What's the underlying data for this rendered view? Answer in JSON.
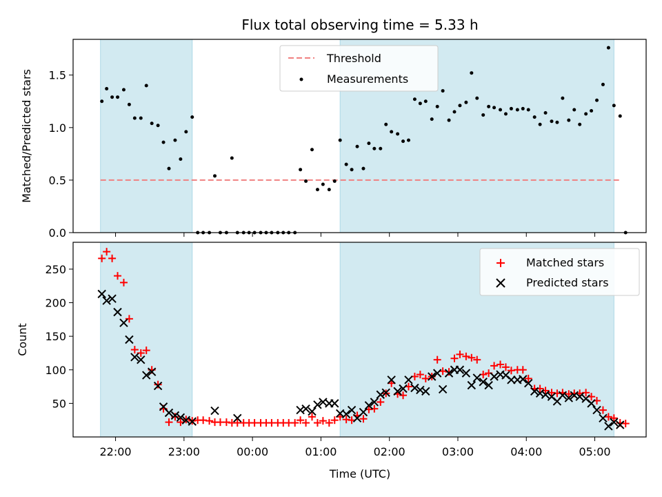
{
  "chart_data": {
    "type": "scatter",
    "title": "Flux total observing time = 5.33 h",
    "xlabel": "Time (UTC)",
    "x_unit": "hours since 00:00 UTC (negative = previous day)",
    "xlim": [
      -2.62,
      5.75
    ],
    "xticks": [
      {
        "x": -2,
        "label": "22:00"
      },
      {
        "x": -1,
        "label": "23:00"
      },
      {
        "x": 0,
        "label": "00:00"
      },
      {
        "x": 1,
        "label": "01:00"
      },
      {
        "x": 2,
        "label": "02:00"
      },
      {
        "x": 3,
        "label": "03:00"
      },
      {
        "x": 4,
        "label": "04:00"
      },
      {
        "x": 5,
        "label": "05:00"
      }
    ],
    "shaded_regions": [
      [
        -2.22,
        -0.88
      ],
      [
        1.28,
        5.28
      ]
    ],
    "shade_color": "#add8e6",
    "top": {
      "ylabel": "Matched/Predicted stars",
      "ylim": [
        0,
        1.84
      ],
      "yticks": [
        {
          "v": 0,
          "label": "0.0"
        },
        {
          "v": 0.5,
          "label": "0.5"
        },
        {
          "v": 1.0,
          "label": "1.0"
        },
        {
          "v": 1.5,
          "label": "1.5"
        }
      ],
      "legend_position": "top-center",
      "threshold": {
        "name": "Threshold",
        "value": 0.5,
        "x_range": [
          -2.22,
          5.37
        ],
        "color": "#f08080"
      },
      "measurements": {
        "name": "Measurements",
        "color": "#000000",
        "points": [
          [
            -2.2,
            1.25
          ],
          [
            -2.13,
            1.37
          ],
          [
            -2.05,
            1.29
          ],
          [
            -1.97,
            1.29
          ],
          [
            -1.88,
            1.36
          ],
          [
            -1.8,
            1.22
          ],
          [
            -1.72,
            1.09
          ],
          [
            -1.63,
            1.09
          ],
          [
            -1.55,
            1.4
          ],
          [
            -1.47,
            1.04
          ],
          [
            -1.38,
            1.02
          ],
          [
            -1.3,
            0.86
          ],
          [
            -1.22,
            0.61
          ],
          [
            -1.13,
            0.88
          ],
          [
            -1.05,
            0.7
          ],
          [
            -0.97,
            0.96
          ],
          [
            -0.88,
            1.1
          ],
          [
            -0.8,
            0
          ],
          [
            -0.72,
            0
          ],
          [
            -0.63,
            0
          ],
          [
            -0.55,
            0.54
          ],
          [
            -0.47,
            0
          ],
          [
            -0.38,
            0
          ],
          [
            -0.3,
            0.71
          ],
          [
            -0.22,
            0
          ],
          [
            -0.13,
            0
          ],
          [
            -0.05,
            0
          ],
          [
            0.03,
            0
          ],
          [
            0.12,
            0
          ],
          [
            0.2,
            0
          ],
          [
            0.28,
            0
          ],
          [
            0.37,
            0
          ],
          [
            0.45,
            0
          ],
          [
            0.53,
            0
          ],
          [
            0.62,
            0
          ],
          [
            0.7,
            0.6
          ],
          [
            0.78,
            0.49
          ],
          [
            0.87,
            0.79
          ],
          [
            0.95,
            0.41
          ],
          [
            1.03,
            0.46
          ],
          [
            1.12,
            0.41
          ],
          [
            1.2,
            0.49
          ],
          [
            1.28,
            0.88
          ],
          [
            1.37,
            0.65
          ],
          [
            1.45,
            0.6
          ],
          [
            1.53,
            0.82
          ],
          [
            1.62,
            0.61
          ],
          [
            1.7,
            0.85
          ],
          [
            1.78,
            0.8
          ],
          [
            1.87,
            0.8
          ],
          [
            1.95,
            1.03
          ],
          [
            2.03,
            0.96
          ],
          [
            2.12,
            0.94
          ],
          [
            2.2,
            0.87
          ],
          [
            2.28,
            0.88
          ],
          [
            2.37,
            1.27
          ],
          [
            2.45,
            1.23
          ],
          [
            2.53,
            1.25
          ],
          [
            2.62,
            1.08
          ],
          [
            2.7,
            1.2
          ],
          [
            2.78,
            1.35
          ],
          [
            2.87,
            1.07
          ],
          [
            2.95,
            1.15
          ],
          [
            3.03,
            1.21
          ],
          [
            3.12,
            1.24
          ],
          [
            3.2,
            1.52
          ],
          [
            3.28,
            1.28
          ],
          [
            3.37,
            1.12
          ],
          [
            3.45,
            1.2
          ],
          [
            3.53,
            1.19
          ],
          [
            3.62,
            1.17
          ],
          [
            3.7,
            1.13
          ],
          [
            3.78,
            1.18
          ],
          [
            3.87,
            1.17
          ],
          [
            3.95,
            1.18
          ],
          [
            4.03,
            1.17
          ],
          [
            4.12,
            1.1
          ],
          [
            4.2,
            1.03
          ],
          [
            4.28,
            1.14
          ],
          [
            4.37,
            1.06
          ],
          [
            4.45,
            1.05
          ],
          [
            4.53,
            1.28
          ],
          [
            4.62,
            1.07
          ],
          [
            4.7,
            1.17
          ],
          [
            4.78,
            1.03
          ],
          [
            4.87,
            1.13
          ],
          [
            4.95,
            1.16
          ],
          [
            5.03,
            1.26
          ],
          [
            5.12,
            1.41
          ],
          [
            5.2,
            1.76
          ],
          [
            5.28,
            1.21
          ],
          [
            5.37,
            1.11
          ],
          [
            5.45,
            0
          ]
        ]
      }
    },
    "bottom": {
      "ylabel": "Count",
      "ylim": [
        0,
        290
      ],
      "yticks": [
        {
          "v": 50,
          "label": "50"
        },
        {
          "v": 100,
          "label": "100"
        },
        {
          "v": 150,
          "label": "150"
        },
        {
          "v": 200,
          "label": "200"
        },
        {
          "v": 250,
          "label": "250"
        }
      ],
      "legend_position": "top-right",
      "series": [
        {
          "name": "Matched stars",
          "marker": "plus",
          "color": "#ff0000",
          "points": [
            [
              -2.2,
              266
            ],
            [
              -2.13,
              276
            ],
            [
              -2.05,
              266
            ],
            [
              -1.97,
              240
            ],
            [
              -1.88,
              230
            ],
            [
              -1.8,
              176
            ],
            [
              -1.72,
              130
            ],
            [
              -1.63,
              125
            ],
            [
              -1.55,
              129
            ],
            [
              -1.47,
              100
            ],
            [
              -1.38,
              78
            ],
            [
              -1.3,
              42
            ],
            [
              -1.22,
              22
            ],
            [
              -1.13,
              30
            ],
            [
              -1.05,
              22
            ],
            [
              -0.97,
              26
            ],
            [
              -0.88,
              24
            ],
            [
              -0.8,
              25
            ],
            [
              -0.72,
              25
            ],
            [
              -0.63,
              24
            ],
            [
              -0.55,
              22
            ],
            [
              -0.47,
              22
            ],
            [
              -0.38,
              22
            ],
            [
              -0.3,
              21
            ],
            [
              -0.22,
              21
            ],
            [
              -0.13,
              21
            ],
            [
              -0.05,
              21
            ],
            [
              0.03,
              21
            ],
            [
              0.12,
              21
            ],
            [
              0.2,
              21
            ],
            [
              0.28,
              21
            ],
            [
              0.37,
              21
            ],
            [
              0.45,
              21
            ],
            [
              0.53,
              21
            ],
            [
              0.62,
              21
            ],
            [
              0.7,
              25
            ],
            [
              0.78,
              21
            ],
            [
              0.87,
              30
            ],
            [
              0.95,
              21
            ],
            [
              1.03,
              24
            ],
            [
              1.12,
              21
            ],
            [
              1.2,
              25
            ],
            [
              1.28,
              30
            ],
            [
              1.37,
              26
            ],
            [
              1.45,
              25
            ],
            [
              1.53,
              32
            ],
            [
              1.62,
              27
            ],
            [
              1.7,
              41
            ],
            [
              1.78,
              42
            ],
            [
              1.87,
              52
            ],
            [
              1.95,
              65
            ],
            [
              2.03,
              80
            ],
            [
              2.12,
              64
            ],
            [
              2.2,
              62
            ],
            [
              2.28,
              75
            ],
            [
              2.37,
              90
            ],
            [
              2.45,
              93
            ],
            [
              2.53,
              87
            ],
            [
              2.62,
              90
            ],
            [
              2.7,
              115
            ],
            [
              2.78,
              98
            ],
            [
              2.87,
              97
            ],
            [
              2.95,
              117
            ],
            [
              3.03,
              123
            ],
            [
              3.12,
              120
            ],
            [
              3.2,
              118
            ],
            [
              3.28,
              115
            ],
            [
              3.37,
              93
            ],
            [
              3.45,
              95
            ],
            [
              3.53,
              106
            ],
            [
              3.62,
              108
            ],
            [
              3.7,
              104
            ],
            [
              3.78,
              99
            ],
            [
              3.87,
              100
            ],
            [
              3.95,
              100
            ],
            [
              4.03,
              87
            ],
            [
              4.12,
              72
            ],
            [
              4.2,
              72
            ],
            [
              4.28,
              69
            ],
            [
              4.37,
              66
            ],
            [
              4.45,
              65
            ],
            [
              4.53,
              66
            ],
            [
              4.62,
              64
            ],
            [
              4.7,
              65
            ],
            [
              4.78,
              65
            ],
            [
              4.87,
              66
            ],
            [
              4.95,
              60
            ],
            [
              5.03,
              54
            ],
            [
              5.12,
              40
            ],
            [
              5.2,
              30
            ],
            [
              5.28,
              28
            ],
            [
              5.37,
              21
            ],
            [
              5.45,
              20
            ]
          ]
        },
        {
          "name": "Predicted stars",
          "marker": "x",
          "color": "#000000",
          "points": [
            [
              -2.2,
              213
            ],
            [
              -2.13,
              203
            ],
            [
              -2.05,
              206
            ],
            [
              -1.97,
              186
            ],
            [
              -1.88,
              170
            ],
            [
              -1.8,
              145
            ],
            [
              -1.72,
              119
            ],
            [
              -1.63,
              115
            ],
            [
              -1.55,
              92
            ],
            [
              -1.47,
              97
            ],
            [
              -1.38,
              76
            ],
            [
              -1.3,
              45
            ],
            [
              -1.22,
              36
            ],
            [
              -1.13,
              32
            ],
            [
              -1.05,
              29
            ],
            [
              -0.97,
              25
            ],
            [
              -0.88,
              23
            ],
            [
              -0.55,
              39
            ],
            [
              -0.22,
              28
            ],
            [
              0.7,
              40
            ],
            [
              0.78,
              42
            ],
            [
              0.87,
              38
            ],
            [
              0.95,
              48
            ],
            [
              1.03,
              52
            ],
            [
              1.12,
              50
            ],
            [
              1.2,
              50
            ],
            [
              1.28,
              35
            ],
            [
              1.37,
              34
            ],
            [
              1.45,
              40
            ],
            [
              1.53,
              28
            ],
            [
              1.62,
              37
            ],
            [
              1.7,
              47
            ],
            [
              1.78,
              52
            ],
            [
              1.87,
              63
            ],
            [
              1.95,
              66
            ],
            [
              2.03,
              85
            ],
            [
              2.12,
              68
            ],
            [
              2.2,
              72
            ],
            [
              2.28,
              85
            ],
            [
              2.37,
              73
            ],
            [
              2.45,
              70
            ],
            [
              2.53,
              68
            ],
            [
              2.62,
              90
            ],
            [
              2.7,
              95
            ],
            [
              2.78,
              71
            ],
            [
              2.87,
              95
            ],
            [
              2.95,
              100
            ],
            [
              3.03,
              100
            ],
            [
              3.12,
              95
            ],
            [
              3.2,
              77
            ],
            [
              3.28,
              88
            ],
            [
              3.37,
              82
            ],
            [
              3.45,
              77
            ],
            [
              3.53,
              90
            ],
            [
              3.62,
              93
            ],
            [
              3.7,
              92
            ],
            [
              3.78,
              85
            ],
            [
              3.87,
              85
            ],
            [
              3.95,
              86
            ],
            [
              4.03,
              80
            ],
            [
              4.12,
              68
            ],
            [
              4.2,
              65
            ],
            [
              4.28,
              63
            ],
            [
              4.37,
              60
            ],
            [
              4.45,
              53
            ],
            [
              4.53,
              62
            ],
            [
              4.62,
              58
            ],
            [
              4.7,
              62
            ],
            [
              4.78,
              60
            ],
            [
              4.87,
              57
            ],
            [
              4.95,
              50
            ],
            [
              5.03,
              40
            ],
            [
              5.12,
              28
            ],
            [
              5.2,
              16
            ],
            [
              5.28,
              22
            ],
            [
              5.37,
              18
            ]
          ]
        }
      ]
    }
  }
}
